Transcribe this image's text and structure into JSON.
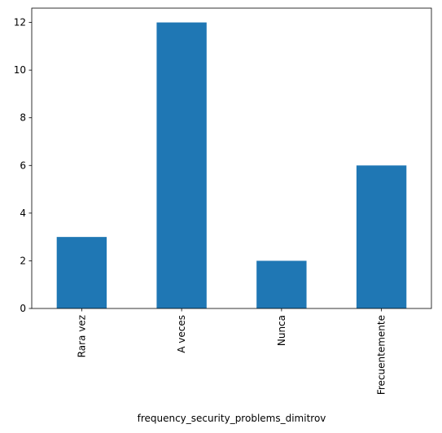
{
  "chart_data": {
    "type": "bar",
    "categories": [
      "Rara vez",
      "A veces",
      "Nunca",
      "Frecuentemente"
    ],
    "values": [
      3,
      12,
      2,
      6
    ],
    "title": "",
    "xlabel": "frequency_security_problems_dimitrov",
    "ylabel": "",
    "ylim": [
      0,
      12.6
    ],
    "yticks": [
      0,
      2,
      4,
      6,
      8,
      10,
      12
    ],
    "grid": false,
    "legend": "none",
    "bar_color": "#1f77b4",
    "x_tick_rotation": "vertical"
  }
}
